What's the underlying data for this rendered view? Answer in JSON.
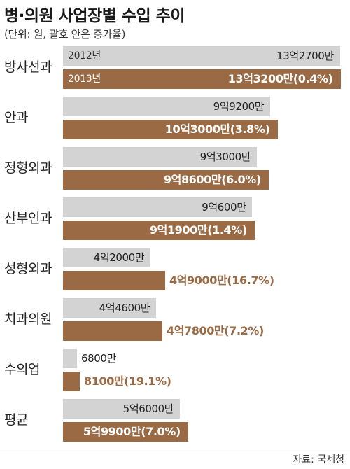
{
  "header": {
    "title": "병·의원 사업장별 수입 추이",
    "subtitle": "(단위: 원, 괄호 안은 증가율)"
  },
  "source": "자료: 국세청",
  "colors": {
    "y2012": "#d3d3d3",
    "y2013": "#9a6a44"
  },
  "chart_data": {
    "type": "bar",
    "orientation": "horizontal",
    "title": "병·의원 사업장별 수입 추이",
    "unit": "원",
    "categories": [
      "방사선과",
      "안과",
      "정형외과",
      "산부인과",
      "성형외과",
      "치과의원",
      "수의업",
      "평균"
    ],
    "series": [
      {
        "name": "2012년",
        "values": [
          1327000000,
          992000000,
          930000000,
          906000000,
          420000000,
          446000000,
          68000000,
          560000000
        ],
        "labels": [
          "13억2700만",
          "9억9200만",
          "9억3000만",
          "9억600만",
          "4억2000만",
          "4억4600만",
          "6800만",
          "5억6000만"
        ]
      },
      {
        "name": "2013년",
        "values": [
          1332000000,
          1030000000,
          986000000,
          919000000,
          490000000,
          478000000,
          81000000,
          599000000
        ],
        "labels": [
          "13억3200만(0.4%)",
          "10억3000만(3.8%)",
          "9억8600만(6.0%)",
          "9억1900만(1.4%)",
          "4억9000만(16.7%)",
          "4억7800만(7.2%)",
          "8100만(19.1%)",
          "5억9900만(7.0%)"
        ],
        "growth_pct": [
          0.4,
          3.8,
          6.0,
          1.4,
          16.7,
          7.2,
          19.1,
          7.0
        ]
      }
    ]
  }
}
